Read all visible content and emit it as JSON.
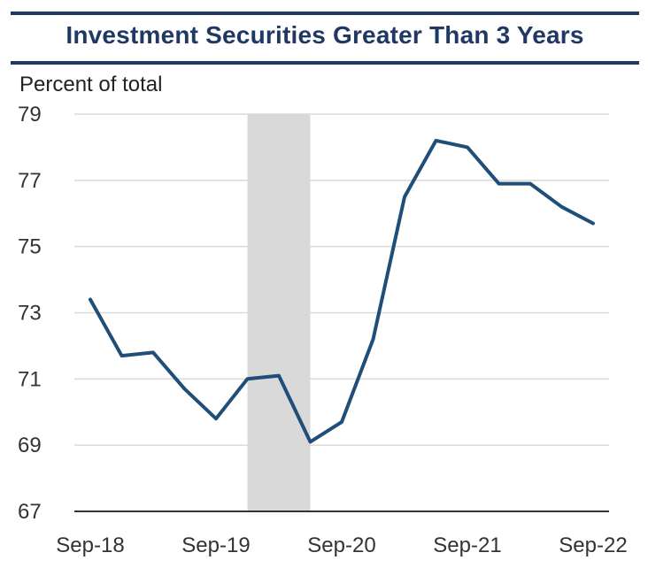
{
  "chart_data": {
    "type": "line",
    "title": "Investment Securities Greater Than 3 Years",
    "ylabel": "Percent of total",
    "xlabel": "",
    "ylim": [
      67,
      79
    ],
    "yticks": [
      67,
      69,
      71,
      73,
      75,
      77,
      79
    ],
    "xtick_labels": [
      "Sep-18",
      "Sep-19",
      "Sep-20",
      "Sep-21",
      "Sep-22"
    ],
    "x": [
      "Sep-18",
      "Dec-18",
      "Mar-19",
      "Jun-19",
      "Sep-19",
      "Dec-19",
      "Mar-20",
      "Jun-20",
      "Sep-20",
      "Dec-20",
      "Mar-21",
      "Jun-21",
      "Sep-21",
      "Dec-21",
      "Mar-22",
      "Jun-22",
      "Sep-22"
    ],
    "series": [
      {
        "name": "Investment Securities Greater Than 3 Years",
        "values": [
          73.4,
          71.7,
          71.8,
          70.7,
          69.8,
          71.0,
          71.1,
          69.1,
          69.7,
          72.2,
          76.5,
          78.2,
          78.0,
          76.9,
          76.9,
          76.2,
          75.7
        ],
        "color": "#1f4e79"
      }
    ],
    "shaded_periods": [
      {
        "start": "Dec-19",
        "end": "Jun-20",
        "color": "#d9d9d9"
      }
    ],
    "grid": true
  }
}
